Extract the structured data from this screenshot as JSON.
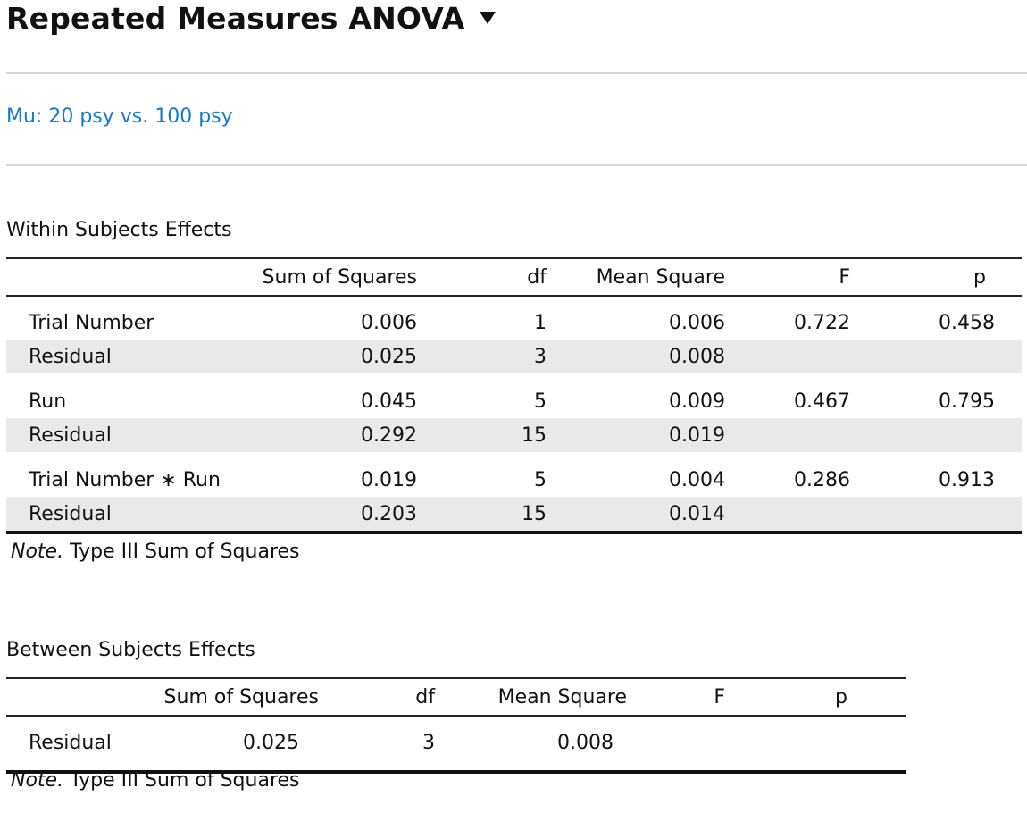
{
  "header": {
    "title": "Repeated Measures ANOVA",
    "caret_icon": "caret-down-icon",
    "subtitle": "Mu: 20 psy vs. 100 psy"
  },
  "within": {
    "title": "Within Subjects Effects",
    "columns": [
      "",
      "Sum of Squares",
      "df",
      "Mean Square",
      "F",
      "p"
    ],
    "rows": [
      {
        "label": "Trial Number",
        "ss": "0.006",
        "df": "1",
        "ms": "0.006",
        "f": "0.722",
        "p": "0.458"
      },
      {
        "label": "Residual",
        "ss": "0.025",
        "df": "3",
        "ms": "0.008",
        "f": "",
        "p": ""
      },
      {
        "label": "Run",
        "ss": "0.045",
        "df": "5",
        "ms": "0.009",
        "f": "0.467",
        "p": "0.795"
      },
      {
        "label": "Residual",
        "ss": "0.292",
        "df": "15",
        "ms": "0.019",
        "f": "",
        "p": ""
      },
      {
        "label": "Trial Number ∗ Run",
        "ss": "0.019",
        "df": "5",
        "ms": "0.004",
        "f": "0.286",
        "p": "0.913"
      },
      {
        "label": "Residual",
        "ss": "0.203",
        "df": "15",
        "ms": "0.014",
        "f": "",
        "p": ""
      }
    ],
    "note_label": "Note.",
    "note_text": " Type III Sum of Squares"
  },
  "between": {
    "title": "Between Subjects Effects",
    "columns": [
      "",
      "Sum of Squares",
      "df",
      "Mean Square",
      "F",
      "p"
    ],
    "rows": [
      {
        "label": "Residual",
        "ss": "0.025",
        "df": "3",
        "ms": "0.008",
        "f": "",
        "p": ""
      }
    ],
    "note_label": "Note.",
    "note_text": " Type III Sum of Squares"
  }
}
